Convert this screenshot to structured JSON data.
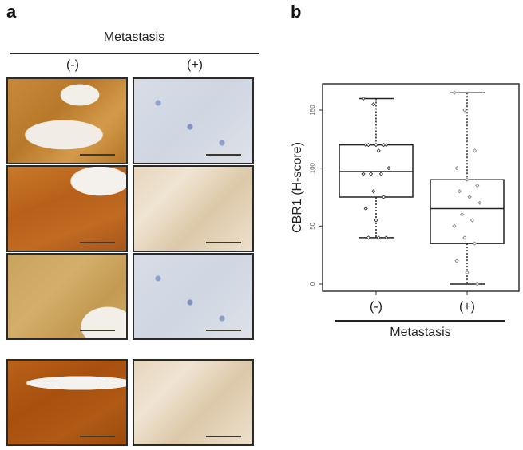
{
  "panel_a": {
    "label": "a",
    "heading": "Metastasis",
    "columns": [
      "(-)",
      "(+)"
    ],
    "tiles": [
      {
        "row": 1,
        "column": "(-)",
        "stain": "strong-brown"
      },
      {
        "row": 1,
        "column": "(+)",
        "stain": "negative-blue"
      },
      {
        "row": 2,
        "column": "(-)",
        "stain": "strong-orange-brown"
      },
      {
        "row": 2,
        "column": "(+)",
        "stain": "weak-beige"
      },
      {
        "row": 3,
        "column": "(-)",
        "stain": "moderate-brown"
      },
      {
        "row": 3,
        "column": "(+)",
        "stain": "negative-blue"
      },
      {
        "row": 4,
        "column": "(-)",
        "stain": "strong-dark-brown"
      },
      {
        "row": 4,
        "column": "(+)",
        "stain": "weak-beige"
      }
    ]
  },
  "panel_b": {
    "label": "b",
    "group_label": "Metastasis"
  },
  "chart_data": {
    "type": "box",
    "title": "",
    "xlabel": "Metastasis",
    "ylabel": "CBR1 (H-score)",
    "categories": [
      "(-)",
      "(+)"
    ],
    "yticks": [
      0,
      50,
      100,
      150
    ],
    "ylim": [
      -7,
      172
    ],
    "grid": false,
    "series": [
      {
        "name": "(-)",
        "whisker_low": 40,
        "q1": 75,
        "median": 97,
        "q3": 120,
        "whisker_high": 160,
        "points": [
          160,
          155,
          120,
          120,
          120,
          120,
          120,
          115,
          100,
          95,
          95,
          95,
          80,
          75,
          65,
          55,
          40,
          40,
          40
        ]
      },
      {
        "name": "(+)",
        "whisker_low": 0,
        "q1": 35,
        "median": 65,
        "q3": 90,
        "whisker_high": 165,
        "points": [
          165,
          150,
          115,
          100,
          90,
          85,
          80,
          75,
          70,
          60,
          55,
          50,
          40,
          35,
          20,
          10,
          0
        ]
      }
    ]
  }
}
